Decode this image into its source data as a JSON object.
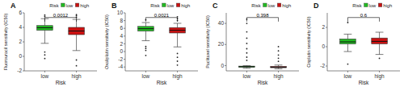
{
  "chart_data": [
    {
      "type": "box",
      "title": "A",
      "x_label": "Risk",
      "y_label": "Fluorouracil sensitivity (IC50)",
      "categories": [
        "low",
        "high"
      ],
      "legend": "top",
      "legend_title": "Risk",
      "grid": false,
      "series": [
        {
          "name": "low",
          "color": "#22BB22",
          "whisker_low": 1.8,
          "q1": 3.6,
          "median": 3.95,
          "q3": 4.25,
          "whisker_high": 5.2,
          "outliers": [
            -0.3,
            0.2,
            0.6,
            5.5,
            5.7
          ]
        },
        {
          "name": "high",
          "color": "#CC1111",
          "whisker_low": 0.8,
          "q1": 3.0,
          "median": 3.5,
          "q3": 4.0,
          "whisker_high": 5.1,
          "outliers": [
            -1.3,
            -0.5,
            5.4,
            5.6,
            5.75
          ]
        }
      ],
      "annotations": [
        {
          "text": "0.0012"
        }
      ],
      "ylim": [
        -2.0,
        6.0
      ],
      "yticks": [
        -2,
        0,
        2,
        4,
        6
      ]
    },
    {
      "type": "box",
      "title": "B",
      "x_label": "Risk",
      "y_label": "Oxaliplatin sensitivity (IC50)",
      "categories": [
        "low",
        "high"
      ],
      "legend": "top",
      "legend_title": "Risk",
      "grid": false,
      "series": [
        {
          "name": "low",
          "color": "#22BB22",
          "whisker_low": 2.8,
          "q1": 5.3,
          "median": 5.9,
          "q3": 6.5,
          "whisker_high": 7.5,
          "outliers": [
            -1.0,
            0.3,
            0.8,
            1.3,
            8.2
          ]
        },
        {
          "name": "high",
          "color": "#CC1111",
          "whisker_low": 1.2,
          "q1": 4.8,
          "median": 5.5,
          "q3": 6.2,
          "whisker_high": 7.3,
          "outliers": [
            -3.5,
            -2.5,
            -1.5,
            -0.5,
            8.0,
            8.5,
            9.0
          ]
        }
      ],
      "annotations": [
        {
          "text": "0.0021"
        }
      ],
      "ylim": [
        -5.0,
        10.0
      ],
      "yticks": [
        -4,
        -2,
        0,
        2,
        4,
        6,
        8,
        10
      ]
    },
    {
      "type": "box",
      "title": "C",
      "x_label": "Risk",
      "y_label": "Paclitaxel sensitivity (IC50)",
      "categories": [
        "low",
        "high"
      ],
      "legend": "top",
      "legend_title": "Risk",
      "grid": false,
      "series": [
        {
          "name": "low",
          "color": "#22BB22",
          "whisker_low": -2.5,
          "q1": -1.5,
          "median": -1.0,
          "q3": -0.5,
          "whisker_high": 0.0,
          "outliers": [
            5.0,
            8.0,
            12.0,
            16.0,
            21.0,
            26.0,
            32.0,
            40.0,
            44.0
          ]
        },
        {
          "name": "high",
          "color": "#CC1111",
          "whisker_low": -3.0,
          "q1": -2.0,
          "median": -1.5,
          "q3": -0.8,
          "whisker_high": 0.5,
          "outliers": [
            4.0,
            7.0,
            10.0,
            14.0,
            18.0
          ]
        }
      ],
      "annotations": [
        {
          "text": "0.398"
        }
      ],
      "ylim": [
        -5.0,
        50.0
      ],
      "yticks": [
        0,
        20,
        40
      ]
    },
    {
      "type": "box",
      "title": "D",
      "x_label": "Risk",
      "y_label": "Cisplatin sensitivity (IC50)",
      "categories": [
        "low",
        "high"
      ],
      "legend": "top",
      "legend_title": "Risk",
      "grid": false,
      "series": [
        {
          "name": "low",
          "color": "#22BB22",
          "whisker_low": -0.5,
          "q1": 0.3,
          "median": 0.5,
          "q3": 0.8,
          "whisker_high": 1.3,
          "outliers": [
            -1.8,
            2.5
          ]
        },
        {
          "name": "high",
          "color": "#CC1111",
          "whisker_low": -0.8,
          "q1": 0.3,
          "median": 0.55,
          "q3": 0.9,
          "whisker_high": 1.5,
          "outliers": [
            -1.2
          ]
        }
      ],
      "annotations": [
        {
          "text": "0.6"
        }
      ],
      "ylim": [
        -2.5,
        3.5
      ],
      "yticks": [
        -2,
        0,
        2
      ]
    }
  ]
}
